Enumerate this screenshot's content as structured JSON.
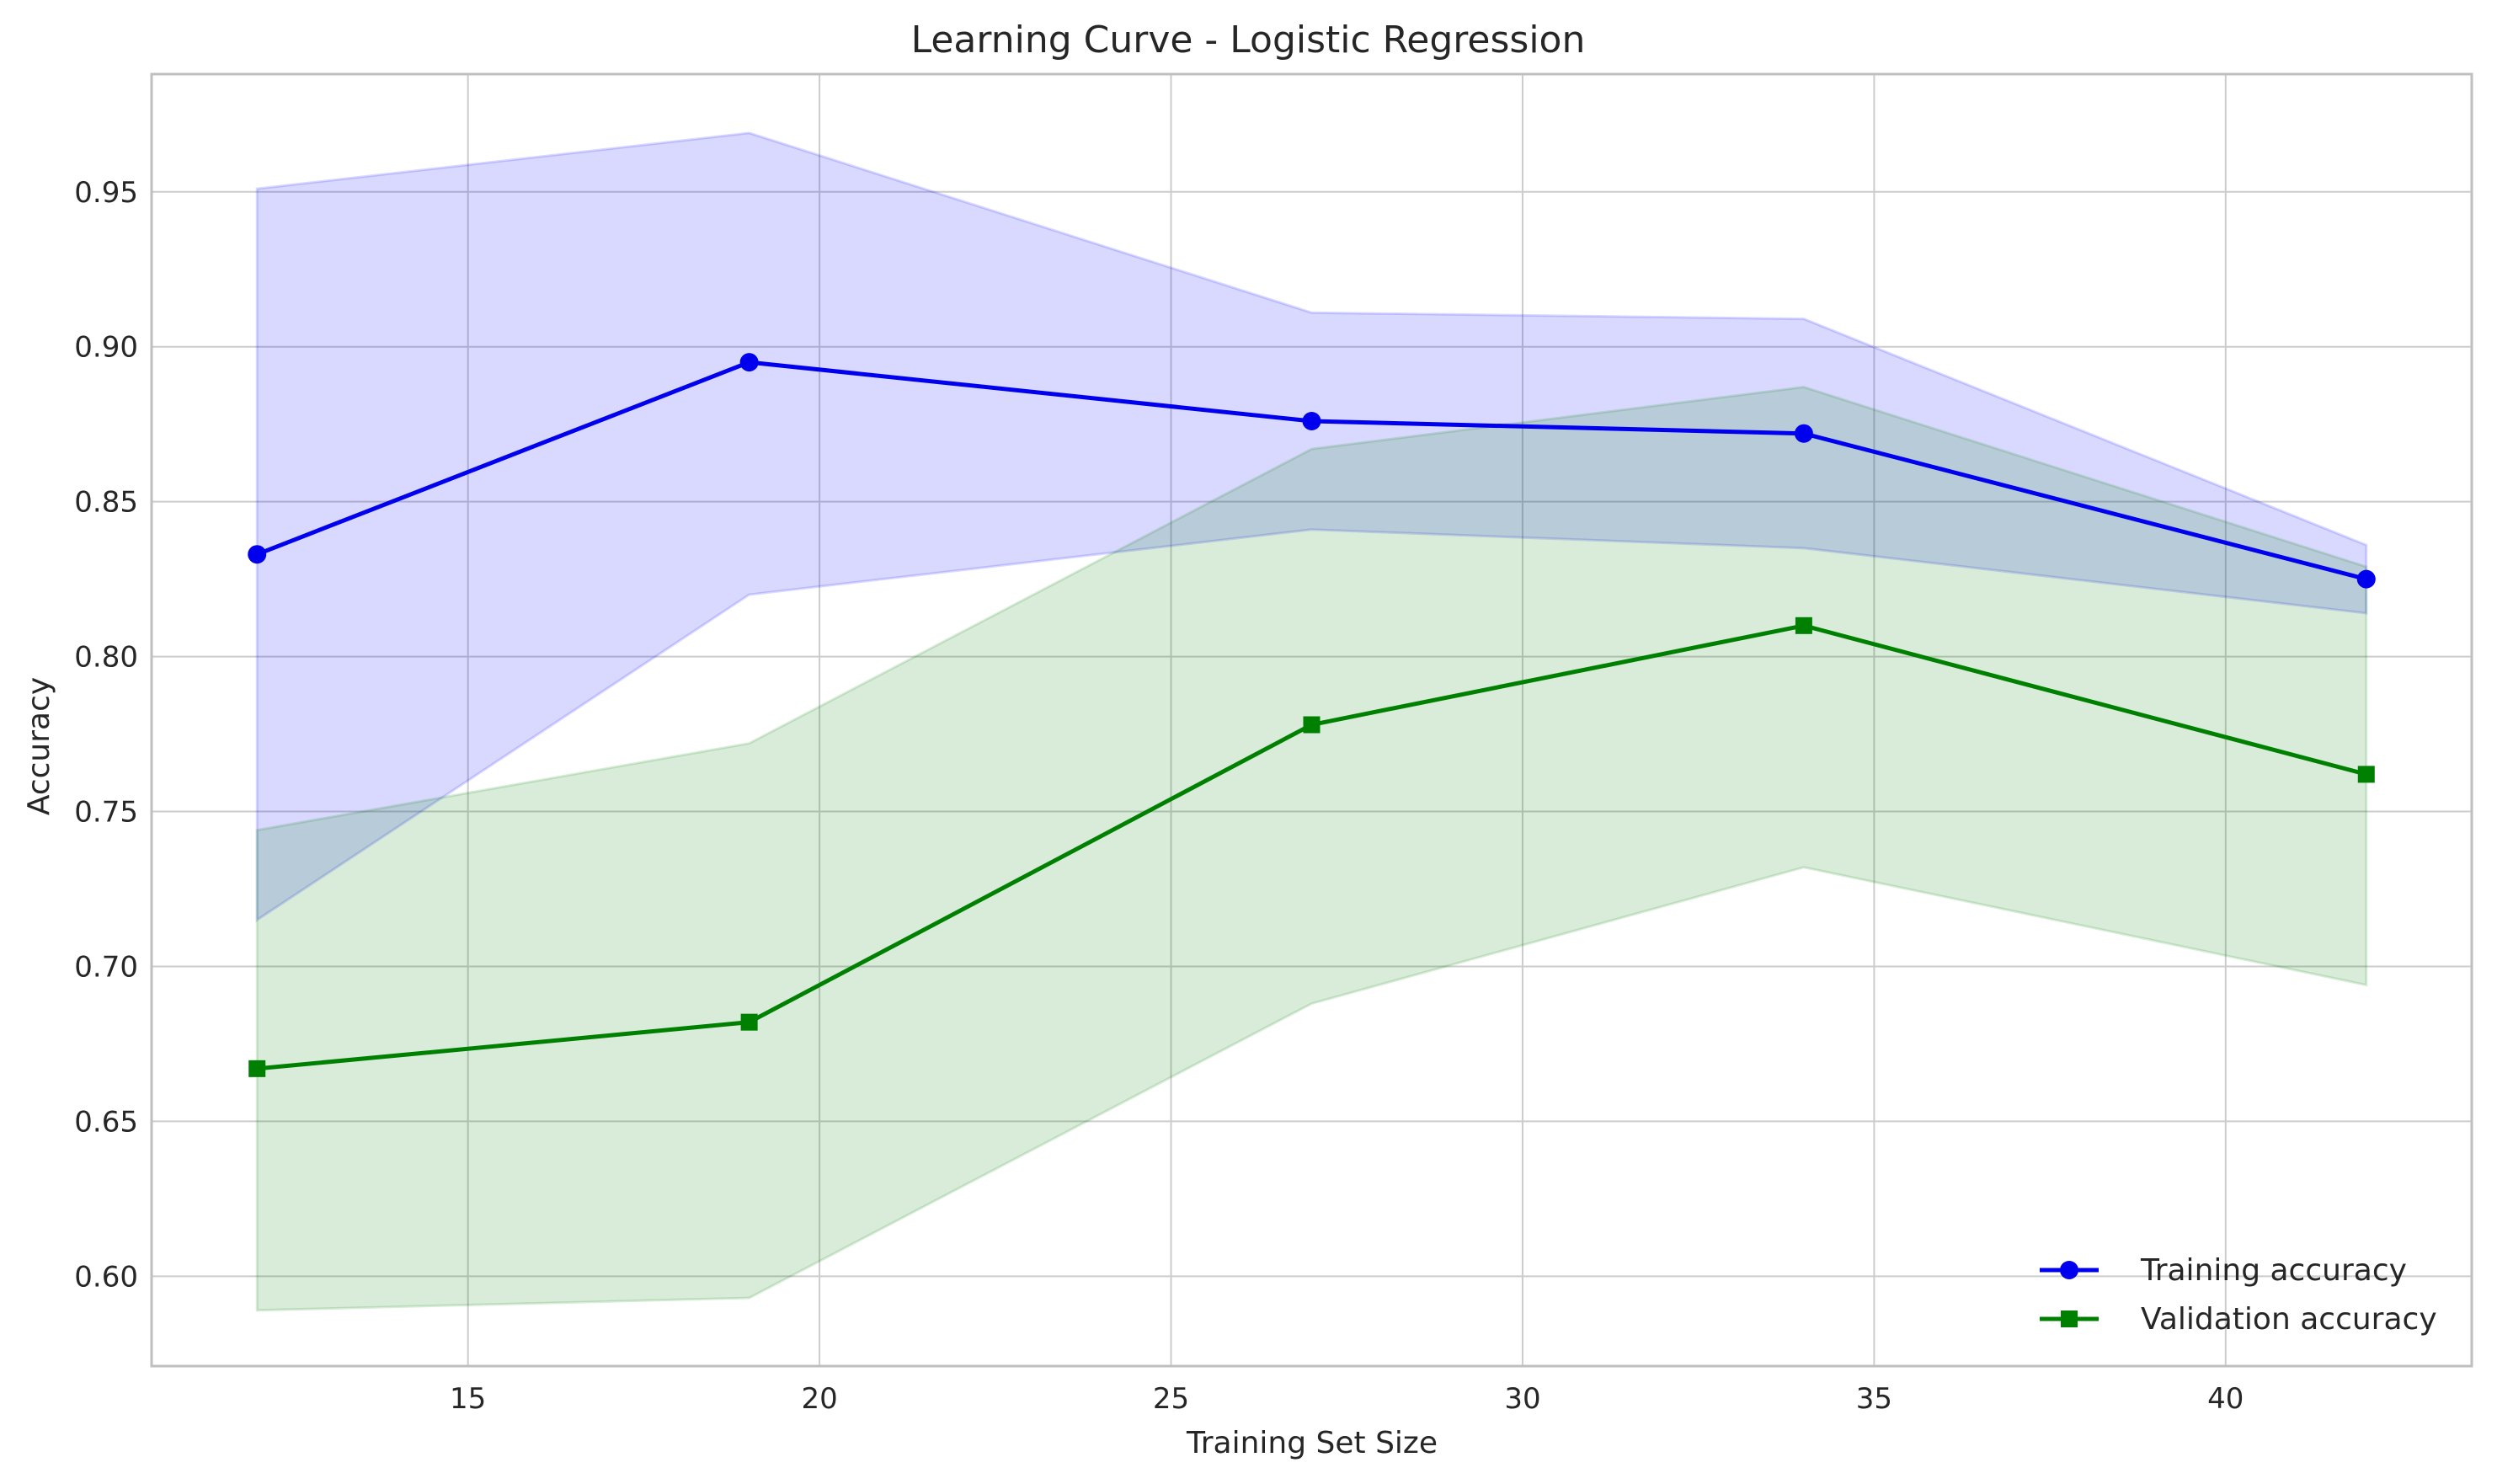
{
  "chart_data": {
    "type": "line",
    "title": "Learning Curve - Logistic Regression",
    "xlabel": "Training Set Size",
    "ylabel": "Accuracy",
    "x": [
      12,
      19,
      27,
      34,
      42
    ],
    "xlim": [
      10.5,
      43.5
    ],
    "ylim": [
      0.571,
      0.988
    ],
    "xticks": [
      15,
      20,
      25,
      30,
      35,
      40
    ],
    "yticks": [
      0.6,
      0.65,
      0.7,
      0.75,
      0.8,
      0.85,
      0.9,
      0.95
    ],
    "grid": true,
    "legend_position": "lower-right",
    "series": [
      {
        "name": "Training accuracy",
        "color": "#0000ee",
        "marker": "circle",
        "values": [
          0.833,
          0.895,
          0.876,
          0.872,
          0.825
        ],
        "band_upper": [
          0.951,
          0.969,
          0.911,
          0.909,
          0.836
        ],
        "band_lower": [
          0.715,
          0.82,
          0.841,
          0.835,
          0.814
        ],
        "band_color": "#0000ff"
      },
      {
        "name": "Validation accuracy",
        "color": "#008000",
        "marker": "square",
        "values": [
          0.667,
          0.682,
          0.778,
          0.81,
          0.762
        ],
        "band_upper": [
          0.744,
          0.772,
          0.867,
          0.887,
          0.829
        ],
        "band_lower": [
          0.589,
          0.593,
          0.688,
          0.732,
          0.694
        ],
        "band_color": "#008000"
      }
    ]
  }
}
